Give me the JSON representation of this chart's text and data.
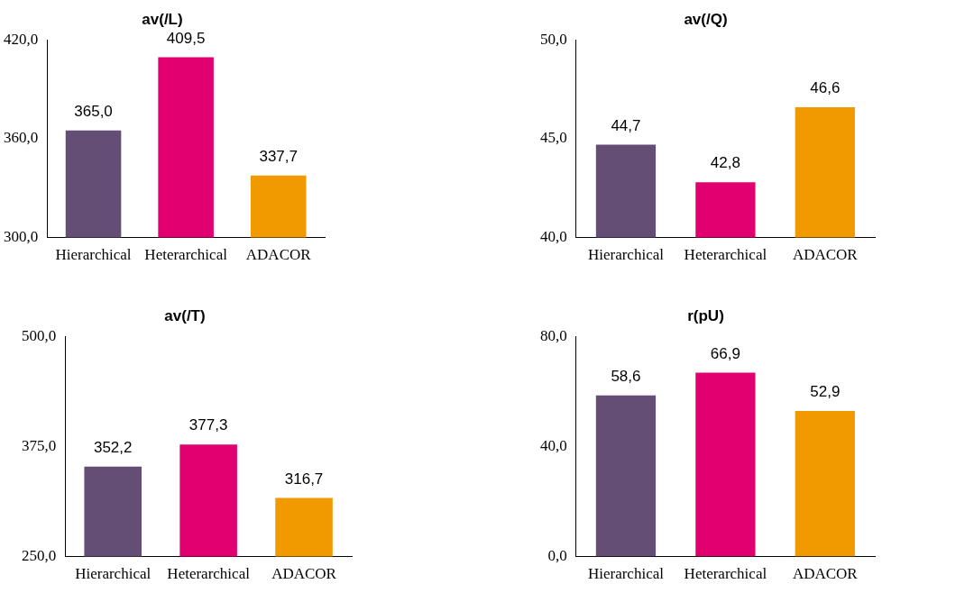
{
  "chart_data": [
    {
      "type": "bar",
      "title": "av(/L)",
      "categories": [
        "Hierarchical",
        "Heterarchical",
        "ADACOR"
      ],
      "values": [
        365.0,
        409.5,
        337.7
      ],
      "colors": [
        "#654e76",
        "#e0006f",
        "#f09a00"
      ],
      "value_labels": [
        "365,0",
        "409,5",
        "337,7"
      ],
      "ylim": [
        300,
        420
      ],
      "yticks": [
        {
          "value": 300,
          "label": "300,0"
        },
        {
          "value": 360,
          "label": "360,0"
        },
        {
          "value": 420,
          "label": "420,0"
        }
      ],
      "grid": false
    },
    {
      "type": "bar",
      "title": "av(/Q)",
      "categories": [
        "Hierarchical",
        "Heterarchical",
        "ADACOR"
      ],
      "values": [
        44.7,
        42.8,
        46.6
      ],
      "colors": [
        "#654e76",
        "#e0006f",
        "#f09a00"
      ],
      "value_labels": [
        "44,7",
        "42,8",
        "46,6"
      ],
      "ylim": [
        40,
        50
      ],
      "yticks": [
        {
          "value": 40,
          "label": "40,0"
        },
        {
          "value": 45,
          "label": "45,0"
        },
        {
          "value": 50,
          "label": "50,0"
        }
      ],
      "grid": false
    },
    {
      "type": "bar",
      "title": "av(/T)",
      "categories": [
        "Hierarchical",
        "Heterarchical",
        "ADACOR"
      ],
      "values": [
        352.2,
        377.3,
        316.7
      ],
      "colors": [
        "#654e76",
        "#e0006f",
        "#f09a00"
      ],
      "value_labels": [
        "352,2",
        "377,3",
        "316,7"
      ],
      "ylim": [
        250,
        500
      ],
      "yticks": [
        {
          "value": 250,
          "label": "250,0"
        },
        {
          "value": 375,
          "label": "375,0"
        },
        {
          "value": 500,
          "label": "500,0"
        }
      ],
      "grid": false
    },
    {
      "type": "bar",
      "title": "r(pU)",
      "categories": [
        "Hierarchical",
        "Heterarchical",
        "ADACOR"
      ],
      "values": [
        58.6,
        66.9,
        52.9
      ],
      "colors": [
        "#654e76",
        "#e0006f",
        "#f09a00"
      ],
      "value_labels": [
        "58,6",
        "66,9",
        "52,9"
      ],
      "ylim": [
        0,
        80
      ],
      "yticks": [
        {
          "value": 0,
          "label": "0,0"
        },
        {
          "value": 40,
          "label": "40,0"
        },
        {
          "value": 80,
          "label": "80,0"
        }
      ],
      "grid": false
    }
  ]
}
